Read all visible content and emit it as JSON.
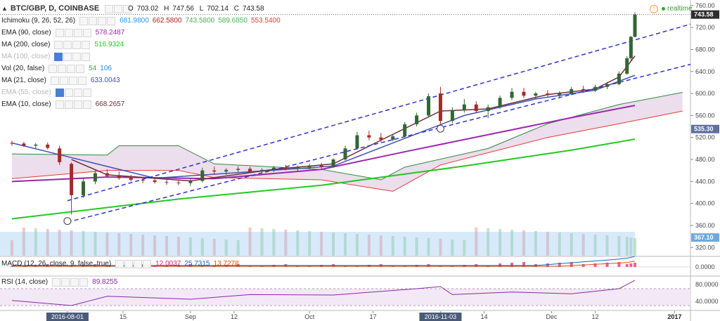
{
  "header": {
    "symbol": "BTC/GBP, D, COINBASE",
    "ohlc": {
      "o_label": "O",
      "o": "703.02",
      "h_label": "H",
      "h": "747.56",
      "l_label": "L",
      "l": "702.14",
      "c_label": "C",
      "c": "743.58"
    },
    "realtime": "realtime"
  },
  "indicators": [
    {
      "name": "Ichimoku (9, 26, 52, 26)",
      "values": [
        "681.9800",
        "662.5800",
        "743.5800",
        "589.6850",
        "553.5400"
      ],
      "colors": [
        "#2196f3",
        "#b71c1c",
        "#4caf50",
        "#4caf50",
        "#e53935"
      ],
      "faded": false
    },
    {
      "name": "EMA (90, close)",
      "values": [
        "578.2487"
      ],
      "colors": [
        "#9c27b0"
      ],
      "faded": false
    },
    {
      "name": "MA (200, close)",
      "values": [
        "516.9324"
      ],
      "colors": [
        "#22c922"
      ],
      "faded": false
    },
    {
      "name": "MA (100, close)",
      "values": [],
      "colors": [],
      "faded": true
    },
    {
      "name": "Vol (20, false)",
      "values": [
        "54",
        "106"
      ],
      "colors": [
        "#43a047",
        "#1e88e5"
      ],
      "faded": false
    },
    {
      "name": "MA (21, close)",
      "values": [
        "633.0043"
      ],
      "colors": [
        "#3f51b5"
      ],
      "faded": false
    },
    {
      "name": "EMA (55, close)",
      "values": [],
      "colors": [],
      "faded": true
    },
    {
      "name": "EMA (10, close)",
      "values": [
        "668.2657"
      ],
      "colors": [
        "#6d2c3a"
      ],
      "faded": false
    }
  ],
  "macd": {
    "name": "MACD (12, 26, close, 9, false, true)",
    "values": [
      "12.0037",
      "25.7315",
      "13.7278"
    ],
    "colors": [
      "#e91e63",
      "#1565c0",
      "#e65100"
    ]
  },
  "rsi": {
    "name": "RSI (14, close)",
    "values": [
      "89.8255"
    ],
    "colors": [
      "#8e24aa"
    ]
  },
  "price_axis": {
    "ticks": [
      "760.00",
      "720.00",
      "680.00",
      "640.00",
      "600.00",
      "560.00",
      "520.00",
      "480.00",
      "440.00",
      "400.00",
      "360.00",
      "320.00"
    ]
  },
  "price_badges": {
    "last": "743.58",
    "level_1": "535.30",
    "volume": "367.10"
  },
  "macd_axis": {
    "ticks": [
      "0.0000"
    ]
  },
  "rsi_axis": {
    "ticks": [
      "80.0000",
      "40.0000"
    ]
  },
  "time_axis": {
    "labels": [
      "2016-08-01",
      "15",
      "Sep",
      "12",
      "Oct",
      "17",
      "2016-11-03",
      "14",
      "Dec",
      "12",
      "2017"
    ],
    "highlighted": [
      "2016-08-01",
      "2016-11-03"
    ]
  },
  "colors": {
    "up": "#336633",
    "down": "#a52a2a",
    "channel": "#2f34c9",
    "cloud_fill": "#e6d3e6",
    "cloud_fill_bull": "#dfeedd"
  },
  "chart_data": {
    "type": "candlestick",
    "title": "BTC/GBP, D, COINBASE",
    "ylim": [
      305,
      770
    ],
    "x_range": [
      "2016-07-15",
      "2017-01-05"
    ],
    "candles": [
      {
        "date": "2016-07-18",
        "o": 510,
        "h": 514,
        "l": 505,
        "c": 509
      },
      {
        "date": "2016-07-21",
        "o": 509,
        "h": 512,
        "l": 503,
        "c": 505
      },
      {
        "date": "2016-07-24",
        "o": 505,
        "h": 510,
        "l": 500,
        "c": 507
      },
      {
        "date": "2016-07-27",
        "o": 507,
        "h": 511,
        "l": 498,
        "c": 501
      },
      {
        "date": "2016-07-30",
        "o": 500,
        "h": 505,
        "l": 470,
        "c": 475
      },
      {
        "date": "2016-08-02",
        "o": 472,
        "h": 475,
        "l": 380,
        "c": 415
      },
      {
        "date": "2016-08-05",
        "o": 415,
        "h": 445,
        "l": 410,
        "c": 440
      },
      {
        "date": "2016-08-08",
        "o": 440,
        "h": 460,
        "l": 435,
        "c": 455
      },
      {
        "date": "2016-08-11",
        "o": 455,
        "h": 462,
        "l": 448,
        "c": 450
      },
      {
        "date": "2016-08-14",
        "o": 450,
        "h": 458,
        "l": 443,
        "c": 446
      },
      {
        "date": "2016-08-17",
        "o": 446,
        "h": 452,
        "l": 440,
        "c": 443
      },
      {
        "date": "2016-08-20",
        "o": 443,
        "h": 448,
        "l": 437,
        "c": 442
      },
      {
        "date": "2016-08-23",
        "o": 442,
        "h": 447,
        "l": 436,
        "c": 439
      },
      {
        "date": "2016-08-26",
        "o": 439,
        "h": 444,
        "l": 434,
        "c": 438
      },
      {
        "date": "2016-08-29",
        "o": 438,
        "h": 443,
        "l": 433,
        "c": 437
      },
      {
        "date": "2016-09-01",
        "o": 437,
        "h": 446,
        "l": 432,
        "c": 441
      },
      {
        "date": "2016-09-04",
        "o": 441,
        "h": 465,
        "l": 438,
        "c": 460
      },
      {
        "date": "2016-09-07",
        "o": 460,
        "h": 467,
        "l": 452,
        "c": 458
      },
      {
        "date": "2016-09-10",
        "o": 458,
        "h": 464,
        "l": 452,
        "c": 461
      },
      {
        "date": "2016-09-13",
        "o": 461,
        "h": 468,
        "l": 456,
        "c": 463
      },
      {
        "date": "2016-09-16",
        "o": 463,
        "h": 467,
        "l": 455,
        "c": 458
      },
      {
        "date": "2016-09-19",
        "o": 458,
        "h": 464,
        "l": 454,
        "c": 461
      },
      {
        "date": "2016-09-22",
        "o": 461,
        "h": 468,
        "l": 457,
        "c": 465
      },
      {
        "date": "2016-09-25",
        "o": 465,
        "h": 470,
        "l": 460,
        "c": 463
      },
      {
        "date": "2016-09-28",
        "o": 463,
        "h": 469,
        "l": 459,
        "c": 466
      },
      {
        "date": "2016-10-01",
        "o": 466,
        "h": 472,
        "l": 462,
        "c": 469
      },
      {
        "date": "2016-10-04",
        "o": 469,
        "h": 474,
        "l": 463,
        "c": 467
      },
      {
        "date": "2016-10-07",
        "o": 467,
        "h": 482,
        "l": 465,
        "c": 480
      },
      {
        "date": "2016-10-10",
        "o": 480,
        "h": 505,
        "l": 478,
        "c": 500
      },
      {
        "date": "2016-10-13",
        "o": 500,
        "h": 530,
        "l": 498,
        "c": 524
      },
      {
        "date": "2016-10-16",
        "o": 524,
        "h": 532,
        "l": 515,
        "c": 520
      },
      {
        "date": "2016-10-19",
        "o": 520,
        "h": 528,
        "l": 512,
        "c": 516
      },
      {
        "date": "2016-10-22",
        "o": 516,
        "h": 525,
        "l": 513,
        "c": 522
      },
      {
        "date": "2016-10-25",
        "o": 522,
        "h": 548,
        "l": 520,
        "c": 544
      },
      {
        "date": "2016-10-28",
        "o": 544,
        "h": 565,
        "l": 540,
        "c": 560
      },
      {
        "date": "2016-10-31",
        "o": 560,
        "h": 600,
        "l": 556,
        "c": 595
      },
      {
        "date": "2016-11-03",
        "o": 600,
        "h": 612,
        "l": 540,
        "c": 550
      },
      {
        "date": "2016-11-06",
        "o": 550,
        "h": 575,
        "l": 546,
        "c": 570
      },
      {
        "date": "2016-11-09",
        "o": 570,
        "h": 590,
        "l": 565,
        "c": 580
      },
      {
        "date": "2016-11-12",
        "o": 580,
        "h": 586,
        "l": 564,
        "c": 568
      },
      {
        "date": "2016-11-15",
        "o": 568,
        "h": 580,
        "l": 555,
        "c": 575
      },
      {
        "date": "2016-11-18",
        "o": 575,
        "h": 596,
        "l": 572,
        "c": 592
      },
      {
        "date": "2016-11-21",
        "o": 592,
        "h": 610,
        "l": 588,
        "c": 603
      },
      {
        "date": "2016-11-24",
        "o": 603,
        "h": 610,
        "l": 592,
        "c": 596
      },
      {
        "date": "2016-11-27",
        "o": 596,
        "h": 603,
        "l": 590,
        "c": 600
      },
      {
        "date": "2016-11-30",
        "o": 600,
        "h": 606,
        "l": 594,
        "c": 597
      },
      {
        "date": "2016-12-03",
        "o": 597,
        "h": 604,
        "l": 591,
        "c": 600
      },
      {
        "date": "2016-12-06",
        "o": 600,
        "h": 612,
        "l": 597,
        "c": 608
      },
      {
        "date": "2016-12-09",
        "o": 608,
        "h": 614,
        "l": 601,
        "c": 605
      },
      {
        "date": "2016-12-12",
        "o": 605,
        "h": 616,
        "l": 603,
        "c": 612
      },
      {
        "date": "2016-12-15",
        "o": 612,
        "h": 621,
        "l": 608,
        "c": 617
      },
      {
        "date": "2016-12-18",
        "o": 617,
        "h": 640,
        "l": 615,
        "c": 636
      },
      {
        "date": "2016-12-20",
        "o": 636,
        "h": 668,
        "l": 634,
        "c": 664
      },
      {
        "date": "2016-12-21",
        "o": 664,
        "h": 705,
        "l": 660,
        "c": 703
      },
      {
        "date": "2016-12-22",
        "o": 703.02,
        "h": 747.56,
        "l": 702.14,
        "c": 743.58
      }
    ],
    "ema10": [
      [
        "2016-08-02",
        480
      ],
      [
        "2016-08-11",
        452
      ],
      [
        "2016-09-01",
        441
      ],
      [
        "2016-09-22",
        462
      ],
      [
        "2016-10-07",
        472
      ],
      [
        "2016-10-19",
        515
      ],
      [
        "2016-11-03",
        568
      ],
      [
        "2016-11-15",
        572
      ],
      [
        "2016-11-30",
        598
      ],
      [
        "2016-12-12",
        608
      ],
      [
        "2016-12-18",
        630
      ],
      [
        "2016-12-22",
        668.27
      ]
    ],
    "ma21": [
      [
        "2016-07-18",
        510
      ],
      [
        "2016-08-05",
        478
      ],
      [
        "2016-08-23",
        446
      ],
      [
        "2016-09-13",
        456
      ],
      [
        "2016-10-07",
        468
      ],
      [
        "2016-10-22",
        510
      ],
      [
        "2016-11-09",
        560
      ],
      [
        "2016-11-27",
        590
      ],
      [
        "2016-12-12",
        606
      ],
      [
        "2016-12-22",
        633.0
      ]
    ],
    "ema90": [
      [
        "2016-07-18",
        440
      ],
      [
        "2016-08-11",
        448
      ],
      [
        "2016-09-07",
        445
      ],
      [
        "2016-10-04",
        462
      ],
      [
        "2016-10-25",
        494
      ],
      [
        "2016-11-15",
        525
      ],
      [
        "2016-12-06",
        556
      ],
      [
        "2016-12-22",
        578.25
      ]
    ],
    "ma200": [
      [
        "2016-07-18",
        372
      ],
      [
        "2016-08-29",
        408
      ],
      [
        "2016-10-04",
        433
      ],
      [
        "2016-11-09",
        468
      ],
      [
        "2016-12-06",
        497
      ],
      [
        "2016-12-22",
        516.93
      ]
    ],
    "cloud_a": [
      [
        "2016-07-18",
        490
      ],
      [
        "2016-08-11",
        488
      ],
      [
        "2016-08-14",
        505
      ],
      [
        "2016-08-29",
        505
      ],
      [
        "2016-09-07",
        472
      ],
      [
        "2016-10-04",
        462
      ],
      [
        "2016-10-19",
        443
      ],
      [
        "2016-10-25",
        466
      ],
      [
        "2016-11-15",
        500
      ],
      [
        "2016-11-30",
        545
      ],
      [
        "2016-12-18",
        580
      ],
      [
        "2017-01-03",
        602
      ]
    ],
    "cloud_b": [
      [
        "2016-07-18",
        445
      ],
      [
        "2016-08-11",
        460
      ],
      [
        "2016-08-29",
        460
      ],
      [
        "2016-09-07",
        447
      ],
      [
        "2016-10-04",
        443
      ],
      [
        "2016-10-22",
        422
      ],
      [
        "2016-11-03",
        470
      ],
      [
        "2016-11-30",
        520
      ],
      [
        "2016-12-18",
        545
      ],
      [
        "2017-01-03",
        568
      ]
    ],
    "channel_upper": {
      "from": [
        "2016-08-01",
        405
      ],
      "to": [
        "2017-01-05",
        726
      ]
    },
    "channel_lower": {
      "from": [
        "2016-08-01",
        366
      ],
      "to": [
        "2017-01-05",
        653
      ]
    },
    "pivots": [
      {
        "date": "2016-08-01",
        "price": 368
      },
      {
        "date": "2016-11-03",
        "price": 536
      }
    ],
    "macd": {
      "macd": 12.0037,
      "signal": 25.7315,
      "histogram": 13.7278
    },
    "rsi": [
      [
        "2016-07-18",
        42
      ],
      [
        "2016-08-02",
        30
      ],
      [
        "2016-08-11",
        52
      ],
      [
        "2016-09-01",
        45
      ],
      [
        "2016-09-16",
        56
      ],
      [
        "2016-10-07",
        55
      ],
      [
        "2016-10-28",
        70
      ],
      [
        "2016-11-03",
        75
      ],
      [
        "2016-11-06",
        56
      ],
      [
        "2016-11-21",
        62
      ],
      [
        "2016-12-06",
        58
      ],
      [
        "2016-12-18",
        70
      ],
      [
        "2016-12-22",
        89.8255
      ]
    ],
    "rsi_ylim": [
      20,
      100
    ]
  }
}
